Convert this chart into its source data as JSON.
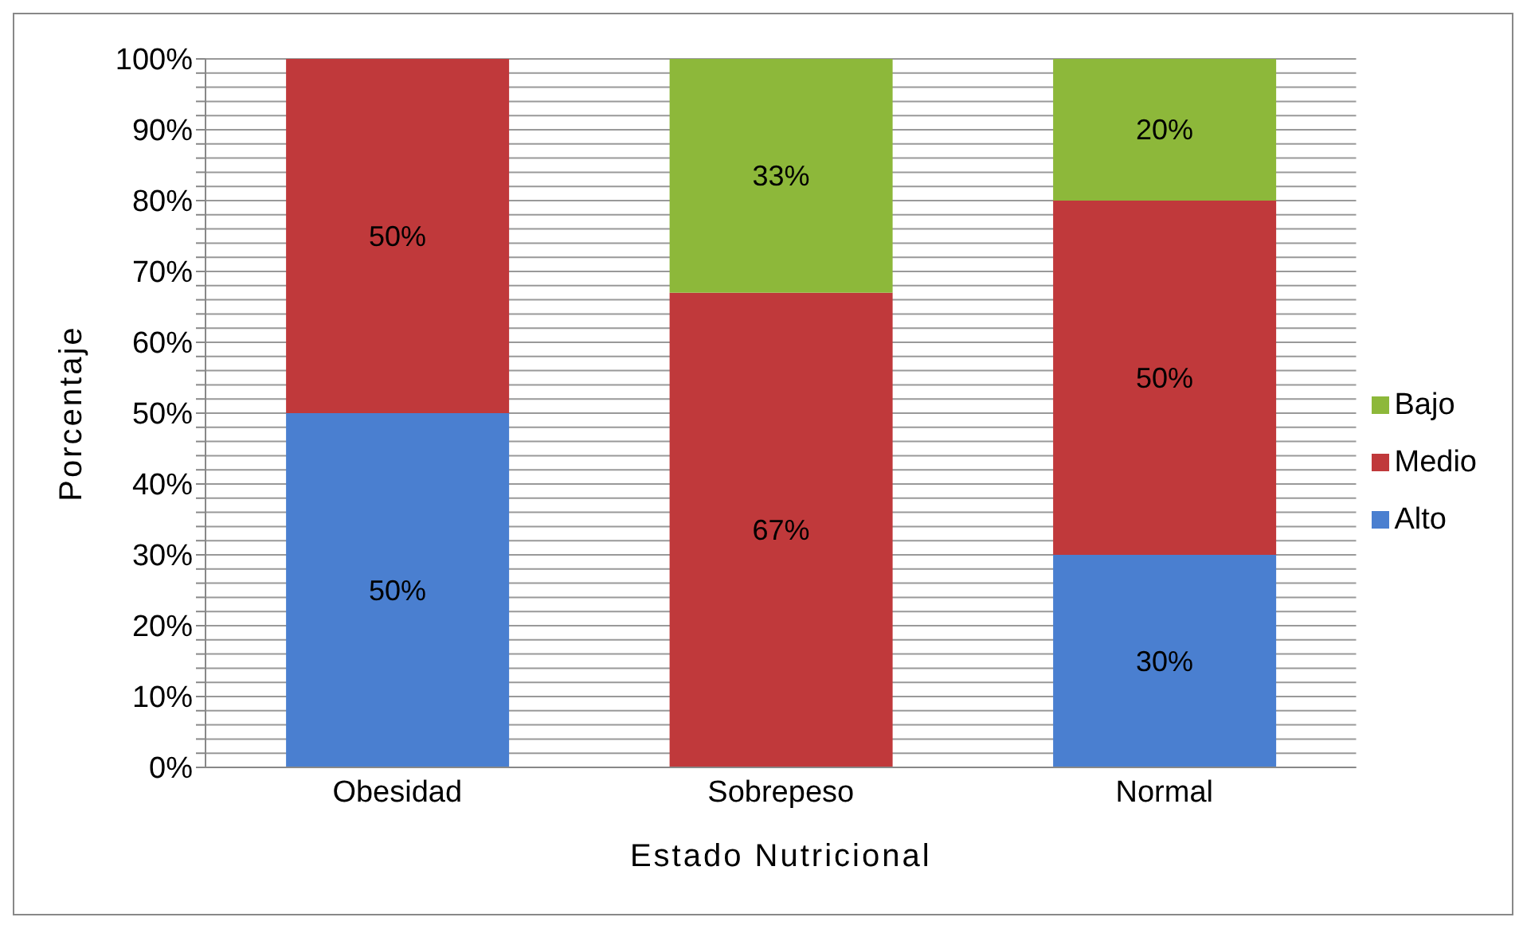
{
  "chart_data": {
    "type": "bar",
    "stacked": true,
    "xlabel": "Estado Nutricional",
    "ylabel": "Porcentaje",
    "categories": [
      "Obesidad",
      "Sobrepeso",
      "Normal"
    ],
    "series": [
      {
        "name": "Alto",
        "color": "#4a7fd0",
        "values": [
          50,
          0,
          30
        ],
        "value_labels": [
          "50%",
          null,
          "30%"
        ]
      },
      {
        "name": "Medio",
        "color": "#c0393b",
        "values": [
          50,
          67,
          50
        ],
        "value_labels": [
          "50%",
          "67%",
          "50%"
        ]
      },
      {
        "name": "Bajo",
        "color": "#8db83a",
        "values": [
          0,
          33,
          20
        ],
        "value_labels": [
          null,
          "33%",
          "20%"
        ]
      }
    ],
    "ylim": [
      0,
      100
    ],
    "yticks": [
      {
        "value": 0,
        "label": "0%"
      },
      {
        "value": 2,
        "label": null
      },
      {
        "value": 4,
        "label": null
      },
      {
        "value": 6,
        "label": null
      },
      {
        "value": 8,
        "label": null
      },
      {
        "value": 10,
        "label": "10%"
      },
      {
        "value": 12,
        "label": null
      },
      {
        "value": 14,
        "label": null
      },
      {
        "value": 16,
        "label": null
      },
      {
        "value": 18,
        "label": null
      },
      {
        "value": 20,
        "label": "20%"
      },
      {
        "value": 22,
        "label": null
      },
      {
        "value": 24,
        "label": null
      },
      {
        "value": 26,
        "label": null
      },
      {
        "value": 28,
        "label": null
      },
      {
        "value": 30,
        "label": "30%"
      },
      {
        "value": 32,
        "label": null
      },
      {
        "value": 34,
        "label": null
      },
      {
        "value": 36,
        "label": null
      },
      {
        "value": 38,
        "label": null
      },
      {
        "value": 40,
        "label": "40%"
      },
      {
        "value": 42,
        "label": null
      },
      {
        "value": 44,
        "label": null
      },
      {
        "value": 46,
        "label": null
      },
      {
        "value": 48,
        "label": null
      },
      {
        "value": 50,
        "label": "50%"
      },
      {
        "value": 52,
        "label": null
      },
      {
        "value": 54,
        "label": null
      },
      {
        "value": 56,
        "label": null
      },
      {
        "value": 58,
        "label": null
      },
      {
        "value": 60,
        "label": "60%"
      },
      {
        "value": 62,
        "label": null
      },
      {
        "value": 64,
        "label": null
      },
      {
        "value": 66,
        "label": null
      },
      {
        "value": 68,
        "label": null
      },
      {
        "value": 70,
        "label": "70%"
      },
      {
        "value": 72,
        "label": null
      },
      {
        "value": 74,
        "label": null
      },
      {
        "value": 76,
        "label": null
      },
      {
        "value": 78,
        "label": null
      },
      {
        "value": 80,
        "label": "80%"
      },
      {
        "value": 82,
        "label": null
      },
      {
        "value": 84,
        "label": null
      },
      {
        "value": 86,
        "label": null
      },
      {
        "value": 88,
        "label": null
      },
      {
        "value": 90,
        "label": "90%"
      },
      {
        "value": 92,
        "label": null
      },
      {
        "value": 94,
        "label": null
      },
      {
        "value": 96,
        "label": null
      },
      {
        "value": 98,
        "label": null
      },
      {
        "value": 100,
        "label": "100%"
      }
    ],
    "grid": "y",
    "legend": "right"
  }
}
